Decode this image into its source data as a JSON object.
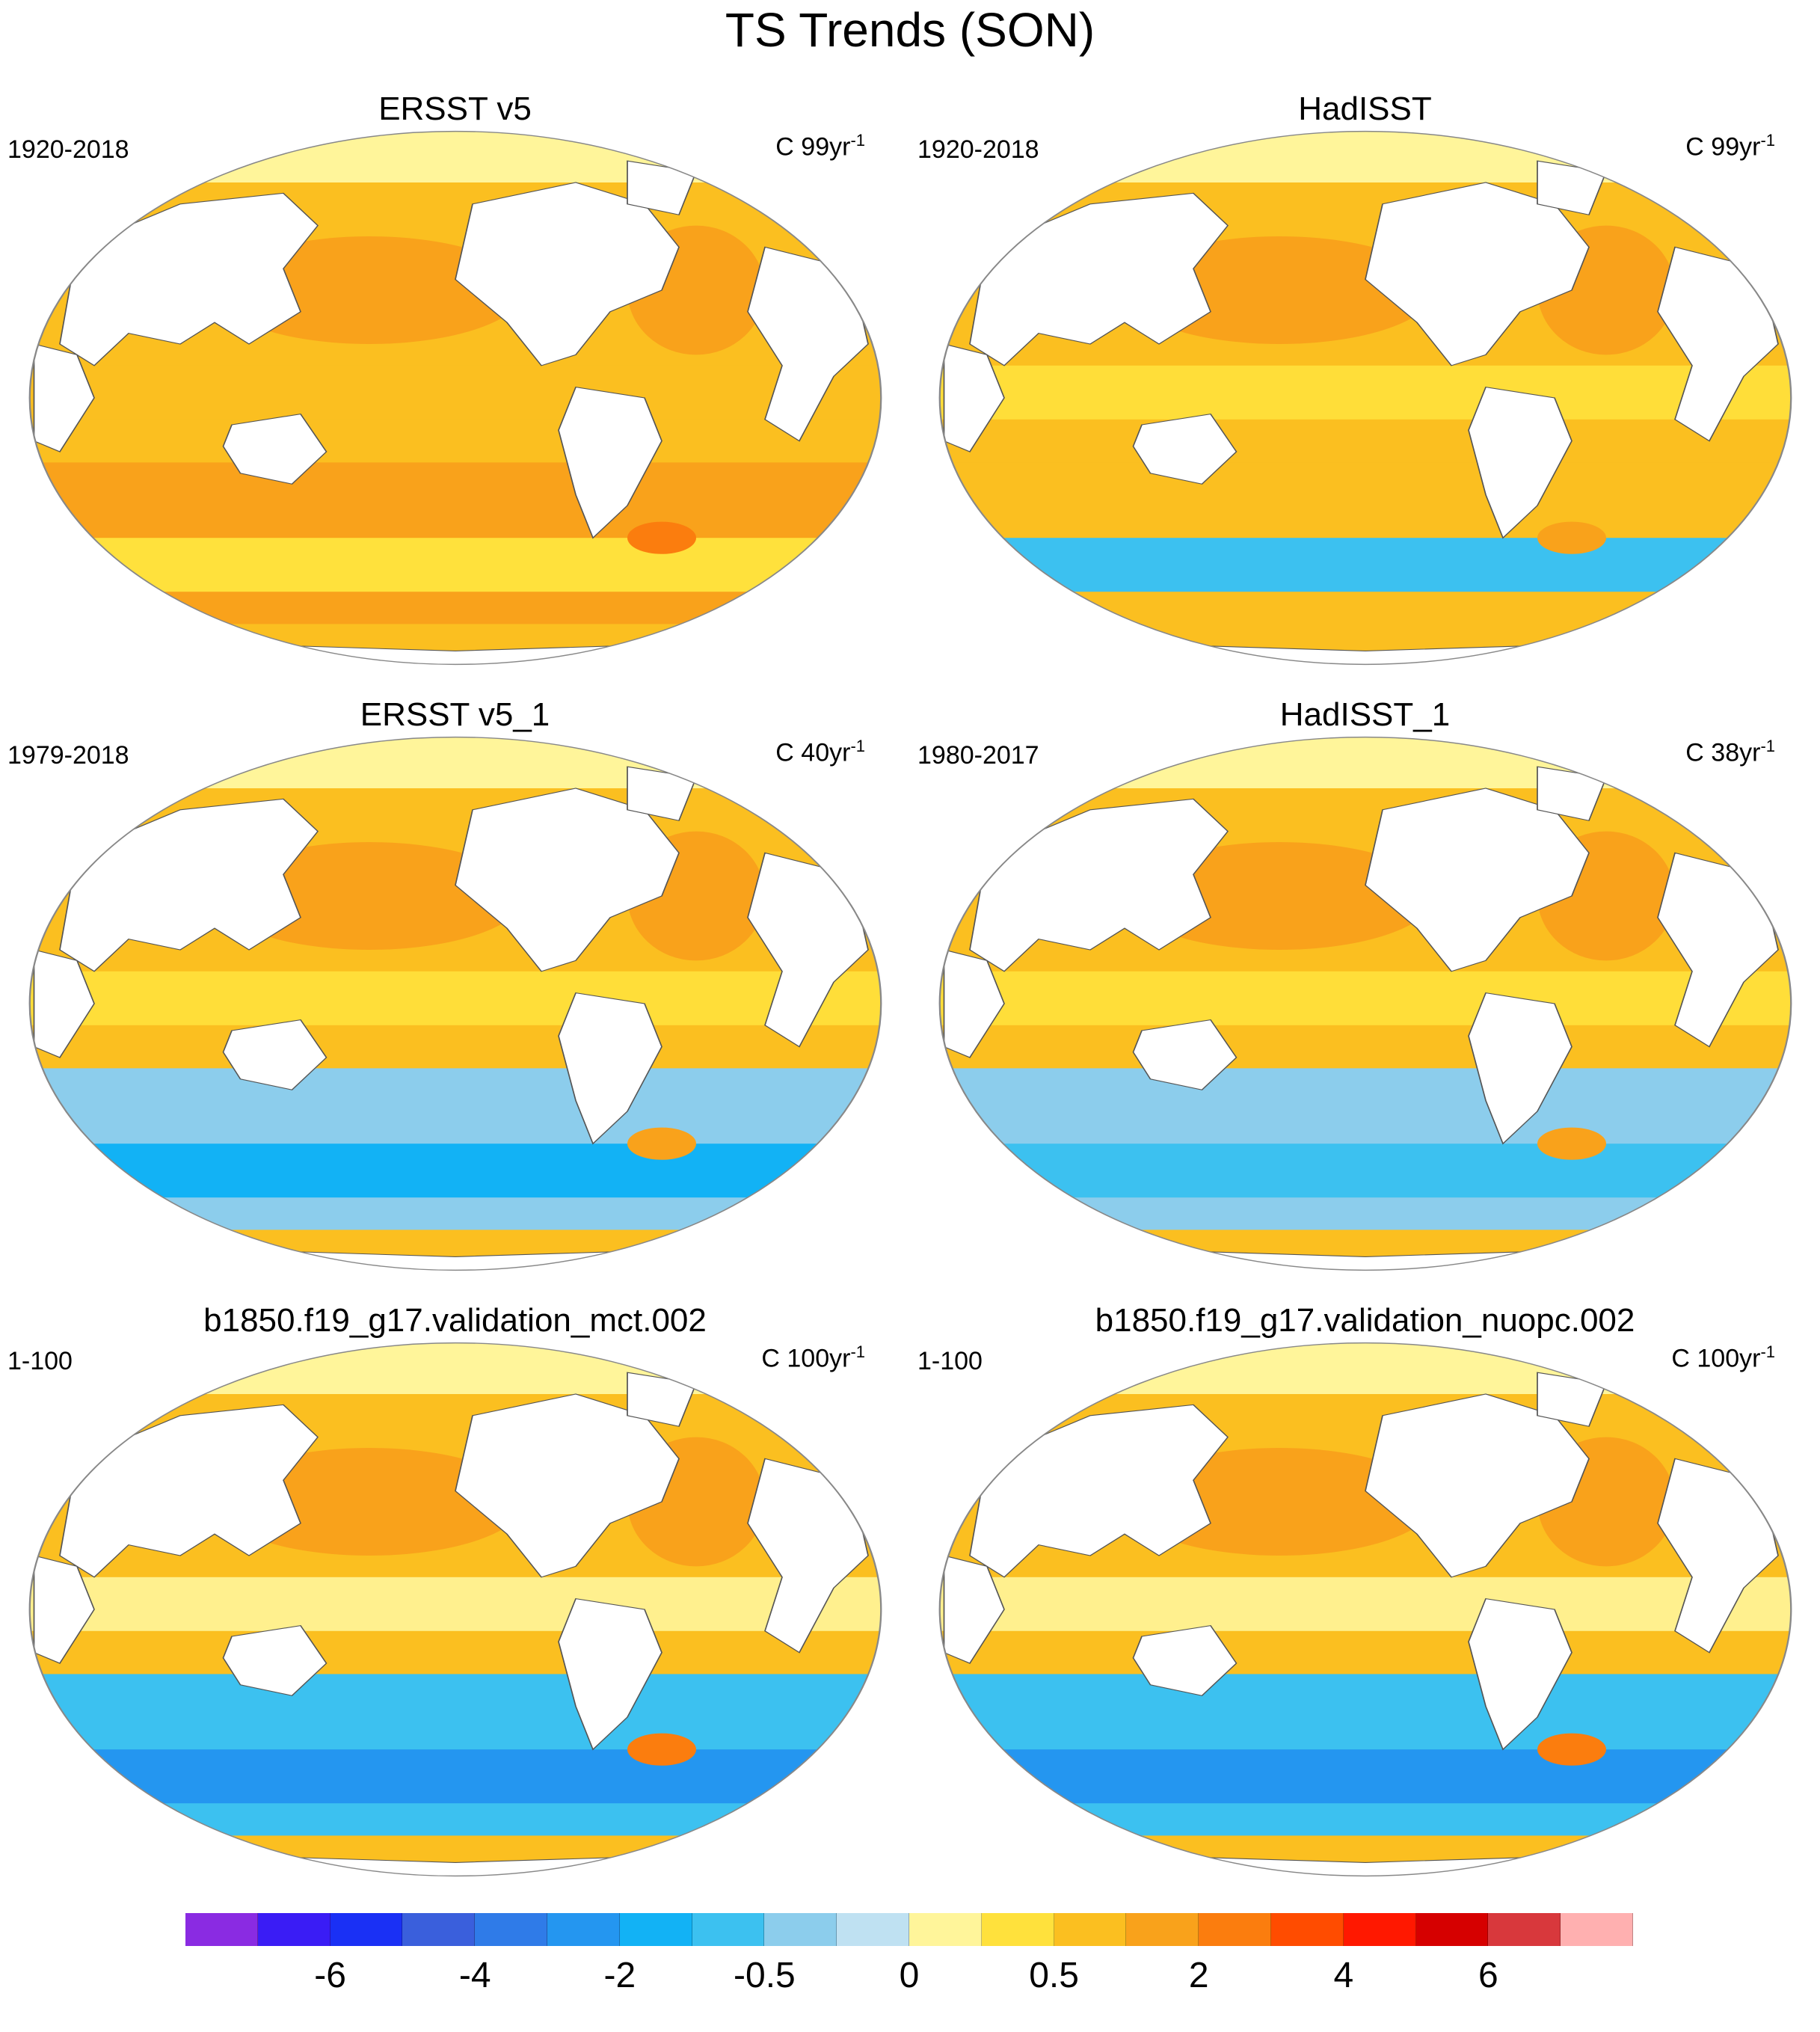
{
  "figure": {
    "title": "TS Trends (SON)"
  },
  "panels": [
    {
      "title": "ERSST v5",
      "period": "1920-2018",
      "units_prefix": "C 99yr",
      "units_exp": "-1",
      "pattern": "warm"
    },
    {
      "title": "HadISST",
      "period": "1920-2018",
      "units_prefix": "C 99yr",
      "units_exp": "-1",
      "pattern": "warm-noisy"
    },
    {
      "title": "ERSST v5_1",
      "period": "1979-2018",
      "units_prefix": "C 40yr",
      "units_exp": "-1",
      "pattern": "mixed"
    },
    {
      "title": "HadISST_1",
      "period": "1980-2017",
      "units_prefix": "C 38yr",
      "units_exp": "-1",
      "pattern": "mixed-noisy"
    },
    {
      "title": "b1850.f19_g17.validation_mct.002",
      "period": "1-100",
      "units_prefix": "C 100yr",
      "units_exp": "-1",
      "pattern": "cool-south"
    },
    {
      "title": "b1850.f19_g17.validation_nuopc.002",
      "period": "1-100",
      "units_prefix": "C 100yr",
      "units_exp": "-1",
      "pattern": "cool-south"
    }
  ],
  "colorbar": {
    "colors": [
      "#8a2be2",
      "#3a1cf5",
      "#1a30f5",
      "#3a5fdc",
      "#2f7be8",
      "#2496f0",
      "#12b2f5",
      "#3cc1f0",
      "#8ccdec",
      "#bfe1f2",
      "#fff59a",
      "#ffe13c",
      "#fbbf20",
      "#f9a21b",
      "#fb7d0e",
      "#ff4c00",
      "#ff1800",
      "#d60000",
      "#d8383c",
      "#ffb0b0"
    ],
    "labels": [
      "-6",
      "-4",
      "-2",
      "-0.5",
      "0",
      "0.5",
      "2",
      "4",
      "6"
    ],
    "label_boundary_index": [
      2,
      4,
      6,
      8,
      10,
      12,
      14,
      16,
      18
    ]
  }
}
